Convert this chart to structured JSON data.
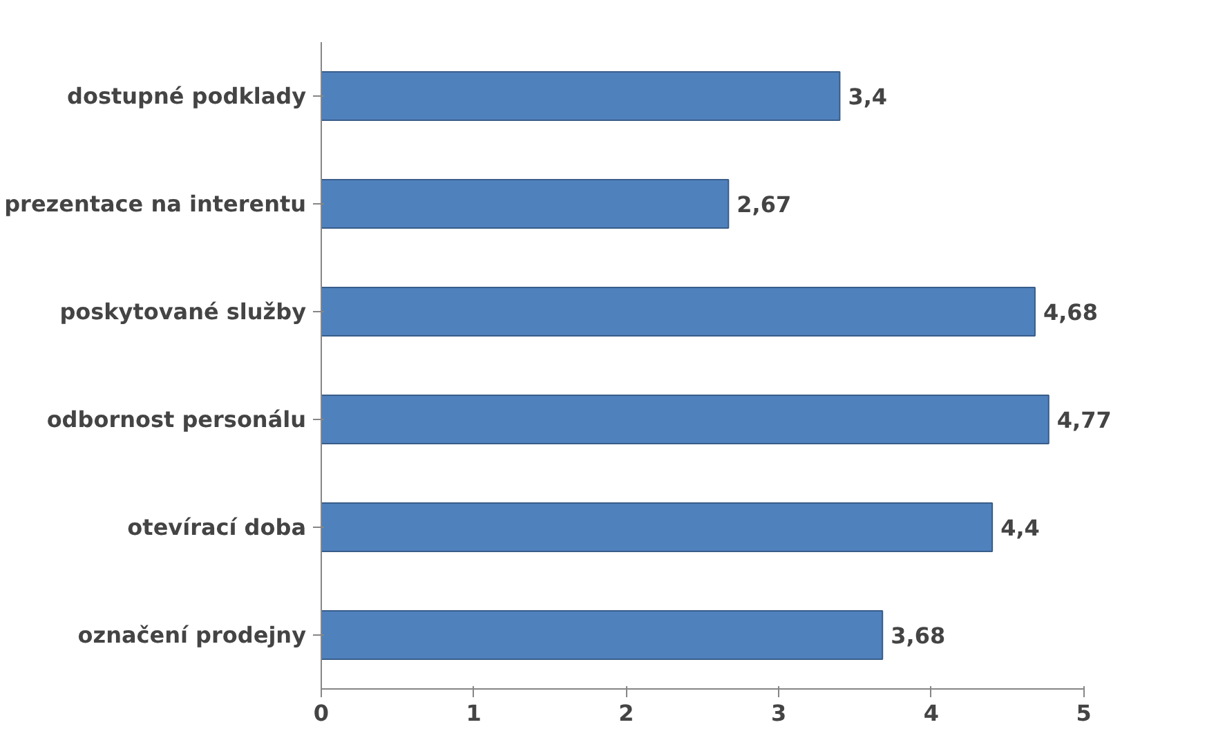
{
  "chart_data": {
    "type": "bar",
    "orientation": "horizontal",
    "categories": [
      "dostupné podklady",
      "prezentace na interentu",
      "poskytované služby",
      "odbornost personálu",
      "otevírací doba",
      "označení prodejny"
    ],
    "values": [
      3.4,
      2.67,
      4.68,
      4.77,
      4.4,
      3.68
    ],
    "value_labels": [
      "3,4",
      "2,67",
      "4,68",
      "4,77",
      "4,4",
      "3,68"
    ],
    "color": "#4f81bd",
    "xlim": [
      0,
      5
    ],
    "xticks": [
      0,
      1,
      2,
      3,
      4,
      5
    ],
    "grid": false
  }
}
